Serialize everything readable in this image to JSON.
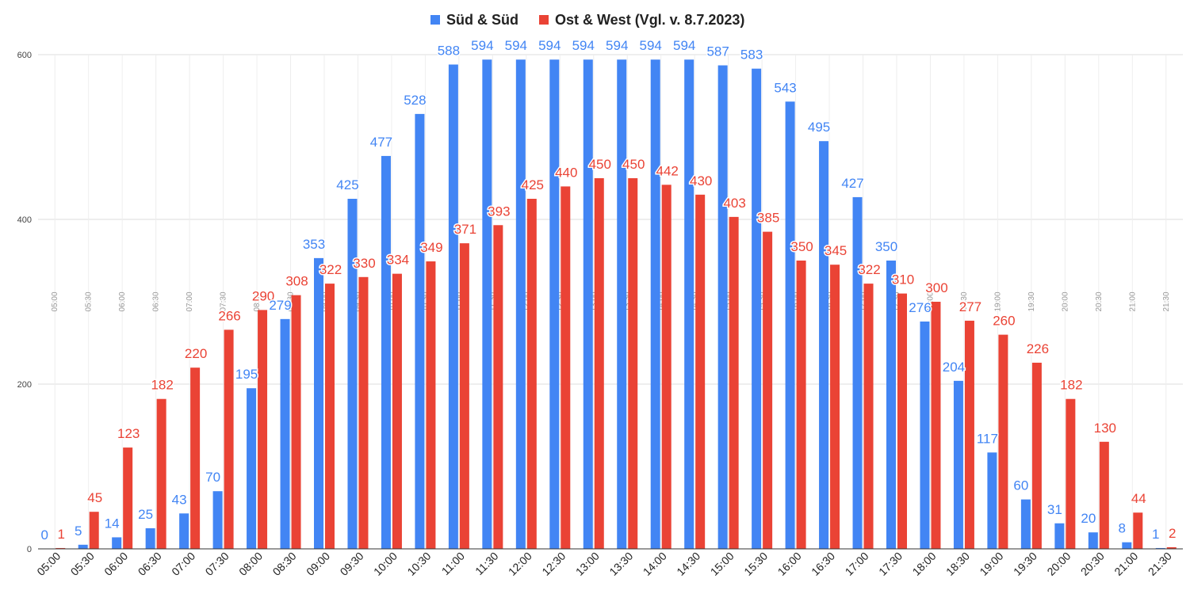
{
  "chart_data": {
    "type": "bar",
    "title": "",
    "xlabel": "",
    "ylabel": "",
    "ylim": [
      0,
      600
    ],
    "yticks": [
      0,
      200,
      400,
      600
    ],
    "grid": true,
    "legend_position": "top-center",
    "categories": [
      "05:00",
      "05:30",
      "06:00",
      "06:30",
      "07:00",
      "07:30",
      "08:00",
      "08:30",
      "09:00",
      "09:30",
      "10:00",
      "10:30",
      "11:00",
      "11:30",
      "12:00",
      "12:30",
      "13:00",
      "13:30",
      "14:00",
      "14:30",
      "15:00",
      "15:30",
      "16:00",
      "16:30",
      "17:00",
      "17:30",
      "18:00",
      "18:30",
      "19:00",
      "19:30",
      "20:00",
      "20:30",
      "21:00",
      "21:30"
    ],
    "series": [
      {
        "name": "Süd & Süd",
        "color": "#4285f4",
        "values": [
          0,
          5,
          14,
          25,
          43,
          70,
          195,
          279,
          353,
          425,
          477,
          528,
          588,
          594,
          594,
          594,
          594,
          594,
          594,
          594,
          587,
          583,
          543,
          495,
          427,
          350,
          276,
          204,
          117,
          60,
          31,
          20,
          8,
          1
        ]
      },
      {
        "name": "Ost & West (Vgl. v. 8.7.2023)",
        "color": "#ea4335",
        "values": [
          1,
          45,
          123,
          182,
          220,
          266,
          290,
          308,
          322,
          330,
          334,
          349,
          371,
          393,
          425,
          440,
          450,
          450,
          442,
          430,
          403,
          385,
          350,
          345,
          322,
          310,
          300,
          277,
          260,
          226,
          182,
          130,
          44,
          2
        ]
      }
    ]
  }
}
